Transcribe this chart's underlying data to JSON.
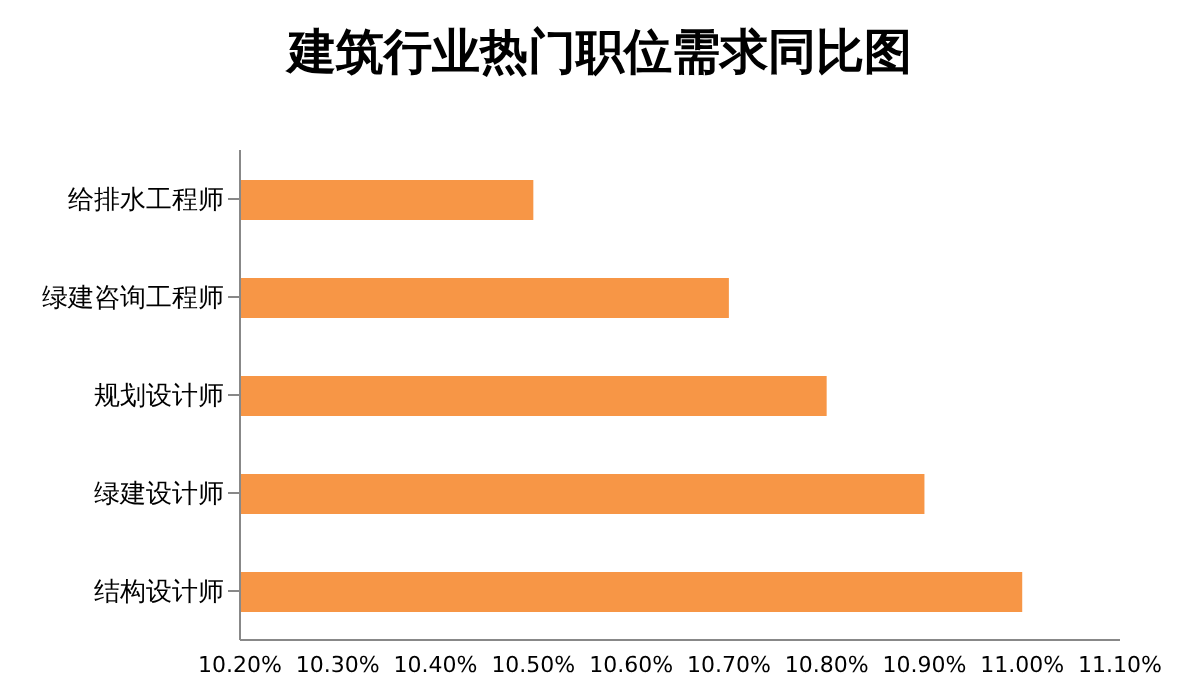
{
  "chart_data": {
    "type": "bar",
    "orientation": "horizontal",
    "title": "建筑行业热门职位需求同比图",
    "categories": [
      "给排水工程师",
      "绿建咨询工程师",
      "规划设计师",
      "绿建设计师",
      "结构设计师"
    ],
    "values": [
      10.5,
      10.7,
      10.8,
      10.9,
      11.0
    ],
    "color": "#f79646",
    "xlim": [
      10.2,
      11.1
    ],
    "xticks": [
      {
        "value": 10.2,
        "label": "10.20%"
      },
      {
        "value": 10.3,
        "label": "10.30%"
      },
      {
        "value": 10.4,
        "label": "10.40%"
      },
      {
        "value": 10.5,
        "label": "10.50%"
      },
      {
        "value": 10.6,
        "label": "10.60%"
      },
      {
        "value": 10.7,
        "label": "10.70%"
      },
      {
        "value": 10.8,
        "label": "10.80%"
      },
      {
        "value": 10.9,
        "label": "10.90%"
      },
      {
        "value": 11.0,
        "label": "11.00%"
      },
      {
        "value": 11.1,
        "label": "11.10%"
      }
    ],
    "grid": false,
    "legend": false
  }
}
